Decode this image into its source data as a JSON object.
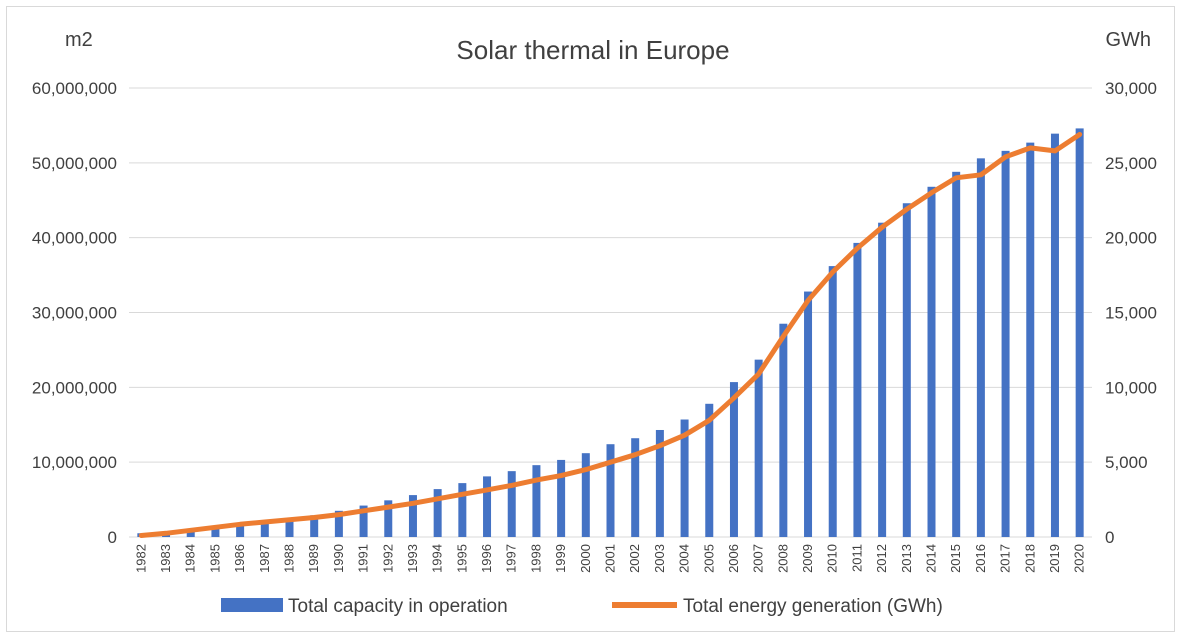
{
  "chart_data": {
    "type": "bar",
    "title": "Solar thermal in Europe",
    "y_left_unit": "m2",
    "y_right_unit": "GWh",
    "ylim_left": [
      0,
      60000000
    ],
    "ylim_right": [
      0,
      30000
    ],
    "y_left_ticks": [
      "0",
      "10,000,000",
      "20,000,000",
      "30,000,000",
      "40,000,000",
      "50,000,000",
      "60,000,000"
    ],
    "y_right_ticks": [
      "0",
      "5,000",
      "10,000",
      "15,000",
      "20,000",
      "25,000",
      "30,000"
    ],
    "grid": true,
    "legend_position": "bottom",
    "categories": [
      "1982",
      "1983",
      "1984",
      "1985",
      "1986",
      "1987",
      "1988",
      "1989",
      "1990",
      "1991",
      "1992",
      "1993",
      "1994",
      "1995",
      "1996",
      "1997",
      "1998",
      "1999",
      "2000",
      "2001",
      "2002",
      "2003",
      "2004",
      "2005",
      "2006",
      "2007",
      "2008",
      "2009",
      "2010",
      "2011",
      "2012",
      "2013",
      "2014",
      "2015",
      "2016",
      "2017",
      "2018",
      "2019",
      "2020"
    ],
    "series": [
      {
        "name": "Total capacity in operation",
        "type": "bar",
        "axis": "left",
        "color": "#4472c4",
        "values": [
          500000,
          700000,
          1000000,
          1300000,
          1700000,
          2000000,
          2400000,
          2900000,
          3500000,
          4200000,
          4900000,
          5600000,
          6400000,
          7200000,
          8100000,
          8800000,
          9600000,
          10300000,
          11200000,
          12400000,
          13200000,
          14300000,
          15700000,
          17800000,
          20700000,
          23700000,
          28500000,
          32800000,
          36200000,
          39300000,
          42000000,
          44600000,
          46800000,
          48800000,
          50600000,
          51600000,
          52700000,
          53900000,
          54600000
        ]
      },
      {
        "name": "Total energy generation (GWh)",
        "type": "line",
        "axis": "right",
        "color": "#ed7d31",
        "values": [
          100,
          250,
          450,
          650,
          850,
          1000,
          1150,
          1300,
          1500,
          1750,
          2000,
          2250,
          2550,
          2850,
          3150,
          3450,
          3800,
          4100,
          4500,
          5000,
          5500,
          6100,
          6800,
          7800,
          9300,
          10900,
          13400,
          15800,
          17700,
          19300,
          20700,
          21900,
          23000,
          24000,
          24200,
          25400,
          26000,
          25800,
          26900
        ]
      }
    ]
  }
}
